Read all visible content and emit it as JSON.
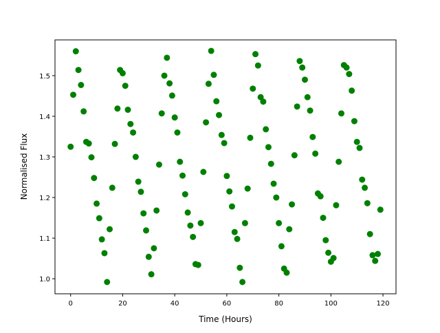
{
  "chart_data": {
    "type": "scatter",
    "title": "",
    "xlabel": "Time (Hours)",
    "ylabel": "Normalised Flux",
    "xlim": [
      -6,
      125
    ],
    "ylim": [
      0.963,
      1.588
    ],
    "xticks": [
      0,
      20,
      40,
      60,
      80,
      100,
      120
    ],
    "yticks": [
      1.0,
      1.1,
      1.2,
      1.3,
      1.4,
      1.5
    ],
    "xtick_labels": [
      "0",
      "20",
      "40",
      "60",
      "80",
      "100",
      "120"
    ],
    "ytick_labels": [
      "1.0",
      "1.1",
      "1.2",
      "1.3",
      "1.4",
      "1.5"
    ],
    "grid": false,
    "marker_color": "#008000",
    "x": [
      0,
      1,
      2,
      3,
      4,
      5,
      6,
      7,
      8,
      9,
      10,
      11,
      12,
      13,
      14,
      15,
      16,
      17,
      18,
      19,
      20,
      21,
      22,
      23,
      24,
      25,
      26,
      27,
      28,
      29,
      30,
      31,
      32,
      33,
      34,
      35,
      36,
      37,
      38,
      39,
      40,
      41,
      42,
      43,
      44,
      45,
      46,
      47,
      48,
      49,
      50,
      51,
      52,
      53,
      54,
      55,
      56,
      57,
      58,
      59,
      60,
      61,
      62,
      63,
      64,
      65,
      66,
      67,
      68,
      69,
      70,
      71,
      72,
      73,
      74,
      75,
      76,
      77,
      78,
      79,
      80,
      81,
      82,
      83,
      84,
      85,
      86,
      87,
      88,
      89,
      90,
      91,
      92,
      93,
      94,
      95,
      96,
      97,
      98,
      99,
      100,
      101,
      102,
      103,
      104,
      105,
      106,
      107,
      108,
      109,
      110,
      111,
      112,
      113,
      114,
      115,
      116,
      117,
      118,
      119
    ],
    "y": [
      1.325,
      1.453,
      1.56,
      1.514,
      1.477,
      1.412,
      1.337,
      1.333,
      1.299,
      1.248,
      1.185,
      1.149,
      1.097,
      1.063,
      0.992,
      1.122,
      1.224,
      1.332,
      1.419,
      1.514,
      1.506,
      1.475,
      1.416,
      1.381,
      1.36,
      1.3,
      1.239,
      1.214,
      1.161,
      1.119,
      1.054,
      1.011,
      1.075,
      1.168,
      1.281,
      1.407,
      1.5,
      1.544,
      1.481,
      1.451,
      1.397,
      1.36,
      1.288,
      1.254,
      1.208,
      1.163,
      1.131,
      1.103,
      1.036,
      1.034,
      1.137,
      1.263,
      1.385,
      1.48,
      1.561,
      1.502,
      1.437,
      1.403,
      1.354,
      1.334,
      1.253,
      1.215,
      1.178,
      1.115,
      1.098,
      1.027,
      0.992,
      1.137,
      1.222,
      1.347,
      1.468,
      1.553,
      1.525,
      1.447,
      1.436,
      1.368,
      1.324,
      1.283,
      1.234,
      1.2,
      1.137,
      1.08,
      1.025,
      1.015,
      1.122,
      1.183,
      1.304,
      1.424,
      1.536,
      1.52,
      1.49,
      1.447,
      1.414,
      1.349,
      1.308,
      1.21,
      1.203,
      1.15,
      1.095,
      1.064,
      1.042,
      1.051,
      1.181,
      1.288,
      1.407,
      1.526,
      1.52,
      1.504,
      1.463,
      1.388,
      1.337,
      1.322,
      1.244,
      1.224,
      1.186,
      1.11,
      1.058,
      1.044,
      1.061,
      1.17
    ]
  }
}
